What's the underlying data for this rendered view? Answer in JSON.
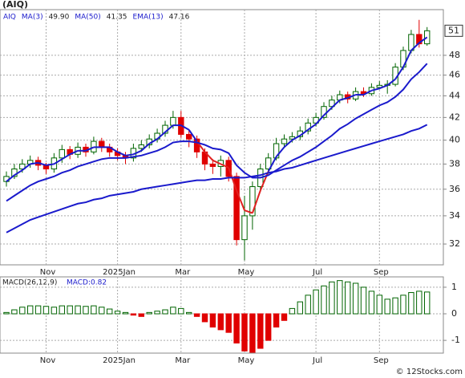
{
  "chart_data": [
    {
      "type": "candlestick",
      "title": "(AIQ)",
      "name": "AIQ",
      "log_scale": true,
      "grid": true,
      "up_color": "#006400",
      "down_color": "#e00000",
      "last_label": "51",
      "categories": [
        null,
        null,
        null,
        null,
        null,
        "Nov",
        null,
        null,
        null,
        null,
        null,
        null,
        null,
        null,
        "2025Jan",
        null,
        null,
        null,
        null,
        null,
        null,
        null,
        "Mar",
        null,
        null,
        null,
        null,
        null,
        null,
        null,
        "May",
        null,
        null,
        null,
        null,
        null,
        null,
        null,
        null,
        "Jul",
        null,
        null,
        null,
        null,
        null,
        null,
        null,
        "Sep",
        null,
        null,
        null,
        null,
        null,
        null
      ],
      "open": [
        36.6,
        37.0,
        37.6,
        38.0,
        38.3,
        37.9,
        37.6,
        38.5,
        39.2,
        38.8,
        39.4,
        39.0,
        39.9,
        39.4,
        39.0,
        38.7,
        38.5,
        39.3,
        39.6,
        40.1,
        40.6,
        41.3,
        42.0,
        40.5,
        40.1,
        39.0,
        38.0,
        37.8,
        38.3,
        37.0,
        32.3,
        34.0,
        36.2,
        37.6,
        38.5,
        39.7,
        40.1,
        40.3,
        40.8,
        41.5,
        42.0,
        43.0,
        43.6,
        44.1,
        43.7,
        44.4,
        44.2,
        44.8,
        45.0,
        45.1,
        46.8,
        48.5,
        50.2,
        49.2
      ],
      "high": [
        37.4,
        38.0,
        38.4,
        38.7,
        38.6,
        38.1,
        38.9,
        39.6,
        39.5,
        39.8,
        39.7,
        40.3,
        40.2,
        39.7,
        39.3,
        39.0,
        39.7,
        40.0,
        40.5,
        41.0,
        41.7,
        42.6,
        42.6,
        40.9,
        40.4,
        39.3,
        38.4,
        38.7,
        38.6,
        37.3,
        35.5,
        36.6,
        38.0,
        38.9,
        40.2,
        40.5,
        40.7,
        41.2,
        41.9,
        42.4,
        43.4,
        44.0,
        44.5,
        44.4,
        44.8,
        44.8,
        45.2,
        45.4,
        45.5,
        47.2,
        48.9,
        50.7,
        51.8,
        51.0
      ],
      "low": [
        36.2,
        36.8,
        37.3,
        37.7,
        37.5,
        37.2,
        37.3,
        38.1,
        38.4,
        38.5,
        38.6,
        38.8,
        39.0,
        38.6,
        38.3,
        38.0,
        38.2,
        39.0,
        39.3,
        39.8,
        40.3,
        41.0,
        40.2,
        39.4,
        38.5,
        37.5,
        37.2,
        37.0,
        36.6,
        31.9,
        30.9,
        33.0,
        35.8,
        37.2,
        38.3,
        39.4,
        39.8,
        40.0,
        40.5,
        41.2,
        41.8,
        42.7,
        43.3,
        43.3,
        43.5,
        43.9,
        44.0,
        44.6,
        44.2,
        44.9,
        46.5,
        48.2,
        48.8,
        49.0
      ],
      "close": [
        37.0,
        37.6,
        38.0,
        38.3,
        37.9,
        37.6,
        38.5,
        39.2,
        38.8,
        39.4,
        39.0,
        39.9,
        39.4,
        39.0,
        38.7,
        38.5,
        39.3,
        39.6,
        40.1,
        40.6,
        41.3,
        42.0,
        40.5,
        40.1,
        39.0,
        38.0,
        37.8,
        38.3,
        37.0,
        32.3,
        34.0,
        36.2,
        37.6,
        38.5,
        39.7,
        40.1,
        40.3,
        40.8,
        41.5,
        42.0,
        43.0,
        43.6,
        44.1,
        43.7,
        44.4,
        44.2,
        44.8,
        45.0,
        45.1,
        46.8,
        48.5,
        50.2,
        49.2,
        50.6
      ],
      "series": [
        {
          "name": "MA(3)",
          "value_label": "49.90",
          "color": "#1a1acc",
          "below_color": "#e02020",
          "below": 2,
          "values": [
            36.6,
            37.1,
            37.5,
            38.0,
            38.1,
            37.9,
            38.0,
            38.4,
            38.8,
            39.1,
            39.1,
            39.4,
            39.4,
            39.4,
            39.0,
            38.7,
            38.8,
            39.1,
            39.7,
            40.1,
            40.7,
            41.3,
            41.3,
            40.9,
            39.9,
            39.0,
            38.3,
            38.0,
            37.7,
            35.9,
            34.4,
            34.2,
            35.9,
            37.4,
            38.6,
            39.4,
            40.0,
            40.4,
            40.9,
            41.4,
            42.2,
            42.9,
            43.6,
            43.8,
            44.1,
            44.1,
            44.5,
            44.7,
            45.0,
            45.6,
            46.8,
            48.5,
            49.3,
            49.9
          ]
        },
        {
          "name": "MA(50)",
          "value_label": "41.35",
          "color": "#1a1acc",
          "values": [
            32.8,
            33.1,
            33.4,
            33.7,
            33.9,
            34.1,
            34.3,
            34.5,
            34.7,
            34.9,
            35.0,
            35.2,
            35.3,
            35.5,
            35.6,
            35.7,
            35.8,
            36.0,
            36.1,
            36.2,
            36.3,
            36.4,
            36.5,
            36.6,
            36.7,
            36.7,
            36.8,
            36.8,
            36.9,
            36.9,
            36.9,
            37.0,
            37.1,
            37.3,
            37.4,
            37.6,
            37.7,
            37.9,
            38.1,
            38.3,
            38.5,
            38.7,
            38.9,
            39.1,
            39.3,
            39.5,
            39.7,
            39.9,
            40.1,
            40.3,
            40.5,
            40.8,
            41.0,
            41.35
          ]
        },
        {
          "name": "EMA(13)",
          "value_label": "47.16",
          "color": "#1a1acc",
          "values": [
            35.1,
            35.5,
            35.9,
            36.3,
            36.6,
            36.8,
            37.0,
            37.3,
            37.5,
            37.8,
            38.0,
            38.2,
            38.4,
            38.5,
            38.5,
            38.5,
            38.6,
            38.7,
            38.9,
            39.1,
            39.4,
            39.8,
            39.9,
            39.9,
            39.8,
            39.6,
            39.3,
            39.2,
            38.9,
            37.9,
            37.3,
            36.9,
            36.9,
            37.1,
            37.5,
            37.9,
            38.3,
            38.6,
            39.0,
            39.4,
            39.9,
            40.4,
            41.0,
            41.4,
            41.9,
            42.3,
            42.7,
            43.1,
            43.4,
            43.9,
            44.6,
            45.6,
            46.3,
            47.16
          ]
        }
      ],
      "ylim": [
        30.6,
        52.95
      ],
      "yticks": [
        32,
        34,
        36,
        38,
        40,
        42,
        44,
        46,
        48
      ]
    },
    {
      "type": "bar",
      "title": "MACD(26,12,9)",
      "annotation": "MACD:0.82",
      "grid": true,
      "up_color": "#006400",
      "down_color": "#e00000",
      "categories": [
        null,
        null,
        null,
        null,
        null,
        "Nov",
        null,
        null,
        null,
        null,
        null,
        null,
        null,
        null,
        "2025Jan",
        null,
        null,
        null,
        null,
        null,
        null,
        null,
        "Mar",
        null,
        null,
        null,
        null,
        null,
        null,
        null,
        "May",
        null,
        null,
        null,
        null,
        null,
        null,
        null,
        null,
        "Jul",
        null,
        null,
        null,
        null,
        null,
        null,
        null,
        "Sep",
        null,
        null,
        null,
        null,
        null,
        null
      ],
      "values": [
        0.05,
        0.15,
        0.25,
        0.3,
        0.3,
        0.28,
        0.25,
        0.3,
        0.3,
        0.3,
        0.28,
        0.3,
        0.25,
        0.18,
        0.1,
        0.05,
        -0.05,
        -0.1,
        0.05,
        0.1,
        0.15,
        0.25,
        0.2,
        0.05,
        -0.1,
        -0.3,
        -0.5,
        -0.6,
        -0.7,
        -1.1,
        -1.4,
        -1.45,
        -1.3,
        -1.0,
        -0.5,
        -0.25,
        0.2,
        0.45,
        0.7,
        0.9,
        1.05,
        1.2,
        1.25,
        1.2,
        1.15,
        1.0,
        0.85,
        0.7,
        0.55,
        0.6,
        0.7,
        0.8,
        0.85,
        0.82
      ],
      "ylim": [
        -1.48,
        1.39
      ],
      "yticks": [
        -1,
        0,
        1
      ]
    }
  ],
  "watermark": "© 12Stocks.com"
}
